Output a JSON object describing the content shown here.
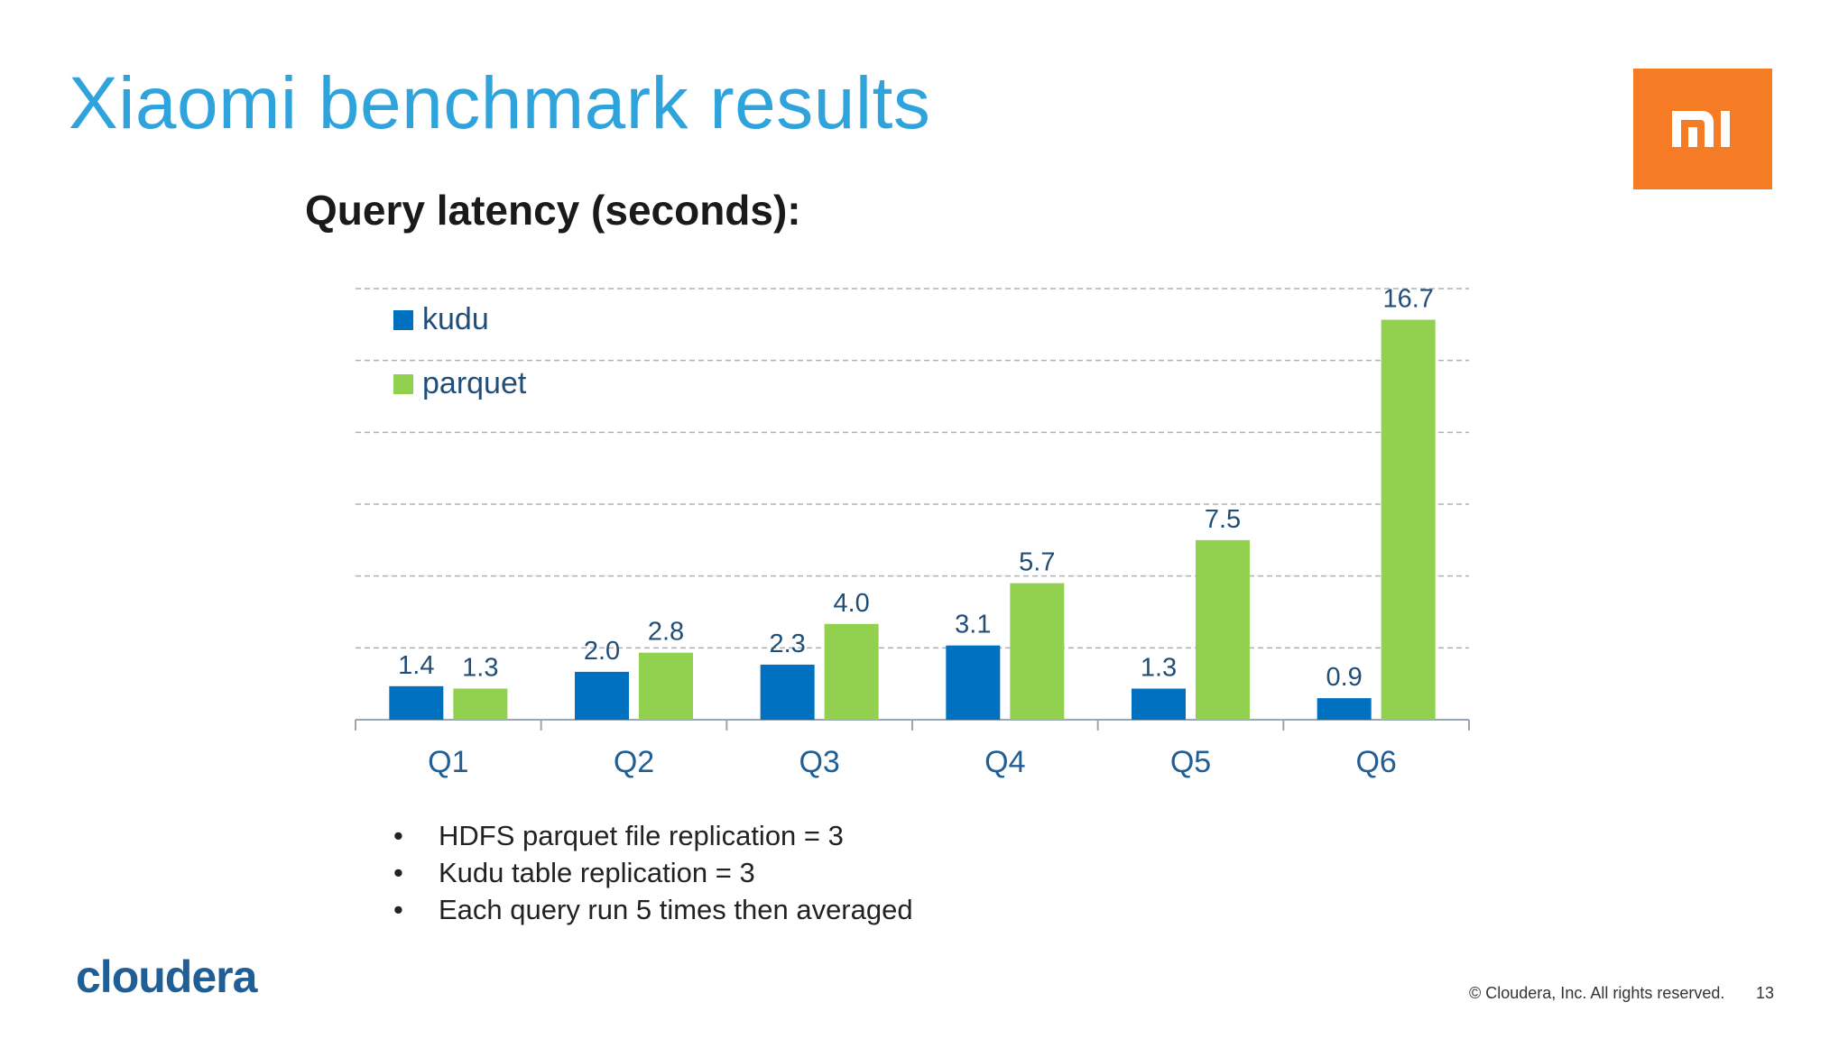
{
  "slide": {
    "title": "Xiaomi benchmark results",
    "subtitle": "Query latency (seconds):",
    "logo_text": "mi",
    "bullets": [
      "HDFS parquet file replication = 3",
      "Kudu table replication = 3",
      "Each query run 5 times then averaged"
    ],
    "brand": "cloudera",
    "copyright": "© Cloudera, Inc. All rights reserved.",
    "page_number": "13"
  },
  "colors": {
    "title": "#2ea3dc",
    "logo_bg": "#f57c24",
    "kudu": "#0070c0",
    "parquet": "#92d050",
    "data_label": "#1f4e79",
    "axis_label": "#1f5f95"
  },
  "chart_data": {
    "type": "bar",
    "categories": [
      "Q1",
      "Q2",
      "Q3",
      "Q4",
      "Q5",
      "Q6"
    ],
    "series": [
      {
        "name": "kudu",
        "values": [
          1.4,
          2.0,
          2.3,
          3.1,
          1.3,
          0.9
        ],
        "color": "#0070c0"
      },
      {
        "name": "parquet",
        "values": [
          1.3,
          2.8,
          4.0,
          5.7,
          7.5,
          16.7
        ],
        "color": "#92d050"
      }
    ],
    "value_labels": [
      [
        "1.4",
        "2.0",
        "2.3",
        "3.1",
        "1.3",
        "0.9"
      ],
      [
        "1.3",
        "2.8",
        "4.0",
        "5.7",
        "7.5",
        "16.7"
      ]
    ],
    "ylim": [
      0,
      18
    ],
    "grid": true,
    "legend": "top-left"
  }
}
